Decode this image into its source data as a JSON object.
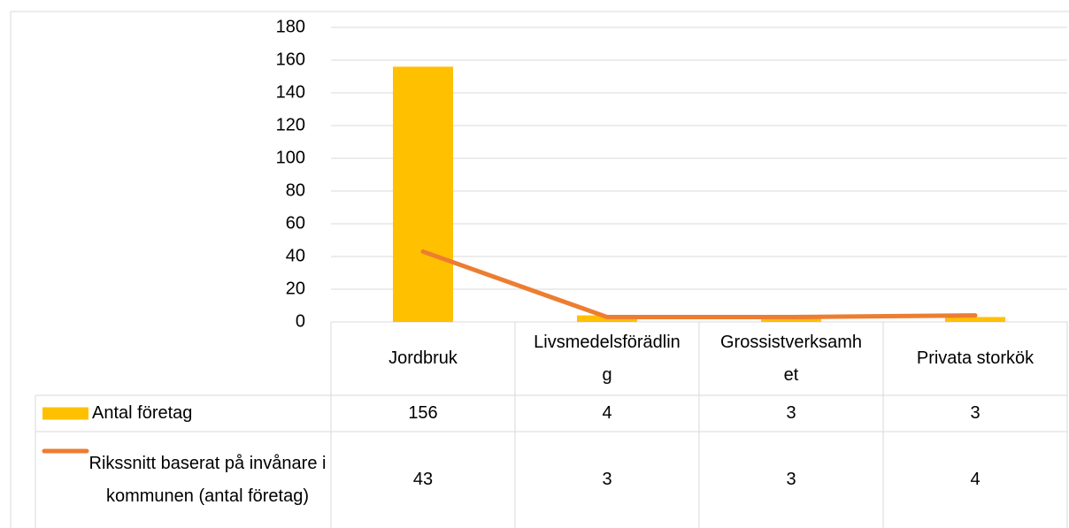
{
  "chart_data": {
    "type": "bar",
    "categories": [
      "Jordbruk",
      "Livsmedelsförädling",
      "Grossistverksamhet",
      "Privata storkök"
    ],
    "series": [
      {
        "name": "Antal företag",
        "color": "#FFC000",
        "type": "bar",
        "values": [
          156,
          4,
          3,
          3
        ]
      },
      {
        "name": "Rikssnitt baserat på invånare i kommunen (antal företag)",
        "color": "#ED7D31",
        "type": "line",
        "values": [
          43,
          3,
          3,
          4
        ]
      }
    ],
    "ylim": [
      0,
      180
    ],
    "yticks": [
      0,
      20,
      40,
      60,
      80,
      100,
      120,
      140,
      160,
      180
    ],
    "grid": true
  }
}
